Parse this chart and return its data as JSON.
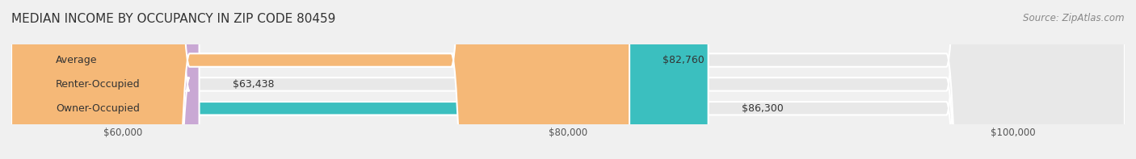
{
  "title": "MEDIAN INCOME BY OCCUPANCY IN ZIP CODE 80459",
  "source_text": "Source: ZipAtlas.com",
  "categories": [
    "Owner-Occupied",
    "Renter-Occupied",
    "Average"
  ],
  "values": [
    86300,
    63438,
    82760
  ],
  "bar_colors": [
    "#3bbfbf",
    "#c9a8d4",
    "#f5b877"
  ],
  "bar_labels": [
    "$86,300",
    "$63,438",
    "$82,760"
  ],
  "xlim_min": 55000,
  "xlim_max": 105000,
  "xticks": [
    60000,
    80000,
    100000
  ],
  "xtick_labels": [
    "$60,000",
    "$80,000",
    "$100,000"
  ],
  "background_color": "#f0f0f0",
  "bar_background_color": "#e8e8e8",
  "title_fontsize": 11,
  "source_fontsize": 8.5,
  "label_fontsize": 9,
  "tick_fontsize": 8.5,
  "bar_height": 0.55
}
